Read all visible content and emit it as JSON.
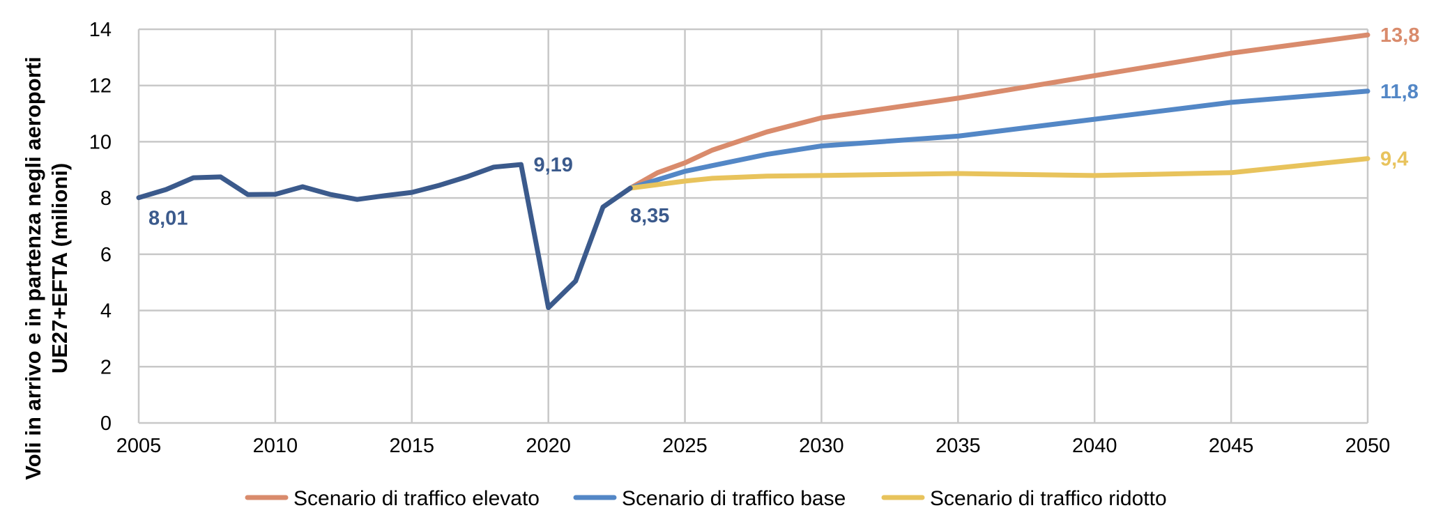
{
  "chart_data": {
    "type": "line",
    "xlabel": "",
    "ylabel": [
      "Voli in arrivo e in partenza negli aeroporti",
      "UE27+EFTA (milioni)"
    ],
    "xlim": [
      2005,
      2050
    ],
    "ylim": [
      0,
      14
    ],
    "x_ticks": [
      "2005",
      "2010",
      "2015",
      "2020",
      "2025",
      "2030",
      "2035",
      "2040",
      "2045",
      "2050"
    ],
    "y_ticks": [
      "0",
      "2",
      "4",
      "6",
      "8",
      "10",
      "12",
      "14"
    ],
    "grid": true,
    "legend_position": "bottom",
    "series": [
      {
        "name": "",
        "color": "#3B5A8C",
        "points": [
          [
            2005,
            8.01
          ],
          [
            2006,
            8.3
          ],
          [
            2007,
            8.72
          ],
          [
            2008,
            8.75
          ],
          [
            2009,
            8.12
          ],
          [
            2010,
            8.13
          ],
          [
            2011,
            8.4
          ],
          [
            2012,
            8.13
          ],
          [
            2013,
            7.95
          ],
          [
            2014,
            8.08
          ],
          [
            2015,
            8.2
          ],
          [
            2016,
            8.45
          ],
          [
            2017,
            8.75
          ],
          [
            2018,
            9.1
          ],
          [
            2019,
            9.19
          ],
          [
            2020,
            4.1
          ],
          [
            2021,
            5.05
          ],
          [
            2022,
            7.68
          ],
          [
            2023,
            8.35
          ]
        ],
        "labels": [
          {
            "x": 2005,
            "y": 8.01,
            "text": "8,01",
            "pos": "below-right"
          },
          {
            "x": 2019,
            "y": 9.19,
            "text": "9,19",
            "pos": "right"
          },
          {
            "x": 2023,
            "y": 8.35,
            "text": "8,35",
            "pos": "below"
          }
        ]
      },
      {
        "name": "Scenario di traffico elevato",
        "color": "#D98B6C",
        "points": [
          [
            2023,
            8.35
          ],
          [
            2024,
            8.9
          ],
          [
            2025,
            9.25
          ],
          [
            2026,
            9.7
          ],
          [
            2028,
            10.35
          ],
          [
            2030,
            10.85
          ],
          [
            2035,
            11.55
          ],
          [
            2040,
            12.35
          ],
          [
            2045,
            13.15
          ],
          [
            2050,
            13.8
          ]
        ],
        "labels": [
          {
            "x": 2050,
            "y": 13.8,
            "text": "13,8",
            "pos": "right"
          }
        ]
      },
      {
        "name": "Scenario di traffico base",
        "color": "#5387C6",
        "points": [
          [
            2023,
            8.35
          ],
          [
            2025,
            8.95
          ],
          [
            2026,
            9.15
          ],
          [
            2028,
            9.55
          ],
          [
            2030,
            9.85
          ],
          [
            2035,
            10.2
          ],
          [
            2040,
            10.8
          ],
          [
            2045,
            11.4
          ],
          [
            2050,
            11.8
          ]
        ],
        "labels": [
          {
            "x": 2050,
            "y": 11.8,
            "text": "11,8",
            "pos": "right"
          }
        ]
      },
      {
        "name": "Scenario di traffico ridotto",
        "color": "#E8C35C",
        "points": [
          [
            2023,
            8.35
          ],
          [
            2025,
            8.6
          ],
          [
            2026,
            8.7
          ],
          [
            2028,
            8.78
          ],
          [
            2030,
            8.8
          ],
          [
            2035,
            8.87
          ],
          [
            2040,
            8.8
          ],
          [
            2045,
            8.9
          ],
          [
            2050,
            9.4
          ]
        ],
        "labels": [
          {
            "x": 2050,
            "y": 9.4,
            "text": "9,4",
            "pos": "right"
          }
        ]
      }
    ],
    "legend": [
      {
        "name": "Scenario di traffico elevato",
        "color": "#D98B6C"
      },
      {
        "name": "Scenario di traffico base",
        "color": "#5387C6"
      },
      {
        "name": "Scenario di traffico ridotto",
        "color": "#E8C35C"
      }
    ]
  }
}
